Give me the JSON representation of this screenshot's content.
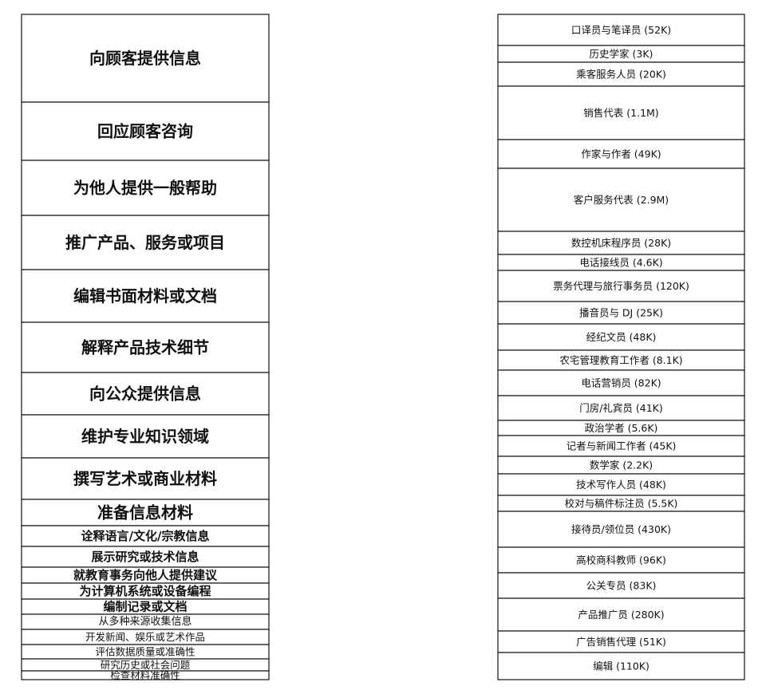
{
  "tasks": [
    {
      "label": "向顾客提供信息"
    },
    {
      "label": "回应顾客咨询"
    },
    {
      "label": "为他人提供一般帮助"
    },
    {
      "label": "推广产品、服务或项目"
    },
    {
      "label": "编辑书面材料或文档"
    },
    {
      "label": "解释产品技术细节"
    },
    {
      "label": "向公众提供信息"
    },
    {
      "label": "维护专业知识领域"
    },
    {
      "label": "撰写艺术或商业材料"
    },
    {
      "label": "准备信息材料"
    },
    {
      "label": "诠释语言/文化/宗教信息"
    },
    {
      "label": "展示研究或技术信息"
    },
    {
      "label": "就教育事务向他人提供建议"
    },
    {
      "label": "为计算机系统或设备编程"
    },
    {
      "label": "编制记录或文档"
    },
    {
      "label": "从多种来源收集信息"
    },
    {
      "label": "开发新闻、娱乐或艺术作品"
    },
    {
      "label": "评估数据质量或准确性"
    },
    {
      "label": "研究历史或社会问题"
    },
    {
      "label": "检查材料准确性"
    }
  ],
  "occupations": [
    {
      "label": "口译员与笔译员 (52K)"
    },
    {
      "label": "历史学家 (3K)"
    },
    {
      "label": "乘客服务人员 (20K)"
    },
    {
      "label": "销售代表 (1.1M)"
    },
    {
      "label": "作家与作者 (49K)"
    },
    {
      "label": "客户服务代表 (2.9M)"
    },
    {
      "label": "数控机床程序员 (28K)"
    },
    {
      "label": "电话接线员 (4.6K)"
    },
    {
      "label": "票务代理与旅行事务员 (120K)"
    },
    {
      "label": "播音员与 DJ (25K)"
    },
    {
      "label": "经纪文员 (48K)"
    },
    {
      "label": "农宅管理教育工作者 (8.1K)"
    },
    {
      "label": "电话营销员 (82K)"
    },
    {
      "label": "门房/礼宾员 (41K)"
    },
    {
      "label": "政治学者 (5.6K)"
    },
    {
      "label": "记者与新闻工作者 (45K)"
    },
    {
      "label": "数学家 (2.2K)"
    },
    {
      "label": "技术写作人员 (48K)"
    },
    {
      "label": "校对与稿件标注员 (5.5K)"
    },
    {
      "label": "接待员/领位员 (430K)"
    },
    {
      "label": "高校商科教师 (96K)"
    },
    {
      "label": "公关专员 (83K)"
    },
    {
      "label": "产品推广员 (280K)"
    },
    {
      "label": "广告销售代理 (51K)"
    },
    {
      "label": "编辑 (110K)"
    }
  ],
  "flow_colors": [
    "#f59a86",
    "#f4a24f",
    "#f2a93c",
    "#e7b23a",
    "#d8c13c",
    "#b5c83a",
    "#8fca3d",
    "#66c95a",
    "#4cc98a",
    "#47c7b4",
    "#4ab6dc",
    "#52a6ee",
    "#6da0f0",
    "#8e92ef",
    "#b287ec",
    "#d67fe6",
    "#ef82d6",
    "#f78bbb",
    "#f594a8",
    "#f29ba0"
  ],
  "links": [
    [
      0,
      3
    ],
    [
      0,
      5
    ],
    [
      0,
      19
    ],
    [
      0,
      2
    ],
    [
      0,
      12
    ],
    [
      0,
      8
    ],
    [
      0,
      13
    ],
    [
      0,
      22
    ],
    [
      1,
      5
    ],
    [
      1,
      3
    ],
    [
      1,
      19
    ],
    [
      1,
      12
    ],
    [
      1,
      7
    ],
    [
      1,
      2
    ],
    [
      1,
      8
    ],
    [
      2,
      5
    ],
    [
      2,
      19
    ],
    [
      2,
      13
    ],
    [
      2,
      2
    ],
    [
      2,
      7
    ],
    [
      2,
      22
    ],
    [
      3,
      3
    ],
    [
      3,
      22
    ],
    [
      3,
      12
    ],
    [
      3,
      21
    ],
    [
      3,
      23
    ],
    [
      3,
      9
    ],
    [
      4,
      24
    ],
    [
      4,
      4
    ],
    [
      4,
      17
    ],
    [
      4,
      18
    ],
    [
      4,
      15
    ],
    [
      5,
      3
    ],
    [
      5,
      17
    ],
    [
      5,
      6
    ],
    [
      5,
      5
    ],
    [
      5,
      22
    ],
    [
      6,
      21
    ],
    [
      6,
      9
    ],
    [
      6,
      15
    ],
    [
      6,
      11
    ],
    [
      6,
      19
    ],
    [
      7,
      20
    ],
    [
      7,
      1
    ],
    [
      7,
      14
    ],
    [
      7,
      16
    ],
    [
      7,
      0
    ],
    [
      7,
      17
    ],
    [
      8,
      4
    ],
    [
      8,
      15
    ],
    [
      8,
      21
    ],
    [
      8,
      23
    ],
    [
      8,
      9
    ],
    [
      9,
      17
    ],
    [
      9,
      24
    ],
    [
      9,
      21
    ],
    [
      9,
      11
    ],
    [
      9,
      4
    ],
    [
      10,
      0
    ],
    [
      10,
      1
    ],
    [
      10,
      14
    ],
    [
      11,
      20
    ],
    [
      11,
      17
    ],
    [
      11,
      16
    ],
    [
      11,
      14
    ],
    [
      12,
      11
    ],
    [
      12,
      20
    ],
    [
      13,
      6
    ],
    [
      13,
      16
    ],
    [
      14,
      24
    ],
    [
      14,
      10
    ],
    [
      14,
      18
    ],
    [
      15,
      15
    ],
    [
      15,
      1
    ],
    [
      15,
      14
    ],
    [
      16,
      4
    ],
    [
      16,
      9
    ],
    [
      16,
      15
    ],
    [
      17,
      16
    ],
    [
      17,
      18
    ],
    [
      17,
      10
    ],
    [
      18,
      1
    ],
    [
      18,
      14
    ],
    [
      19,
      18
    ],
    [
      19,
      24
    ],
    [
      19,
      10
    ]
  ]
}
